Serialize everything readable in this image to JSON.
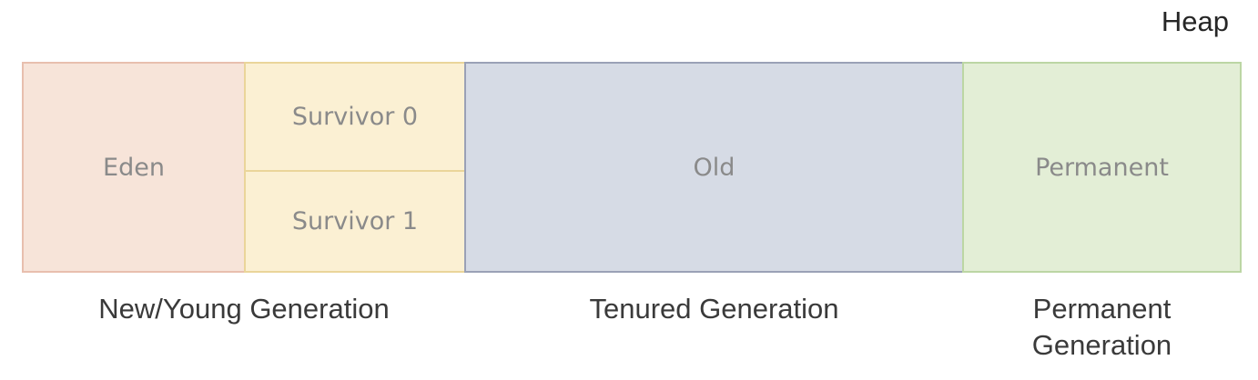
{
  "heap_label": "Heap",
  "regions": {
    "eden": "Eden",
    "survivor0": "Survivor 0",
    "survivor1": "Survivor 1",
    "old": "Old",
    "permanent": "Permanent"
  },
  "generations": {
    "young": "New/Young Generation",
    "tenured": "Tenured Generation",
    "permanent_line1": "Permanent",
    "permanent_line2": "Generation"
  },
  "colors": {
    "eden": "#f7e4d9",
    "survivor": "#fbf0d3",
    "old": "#d6dbe5",
    "permanent": "#e3eed6"
  }
}
